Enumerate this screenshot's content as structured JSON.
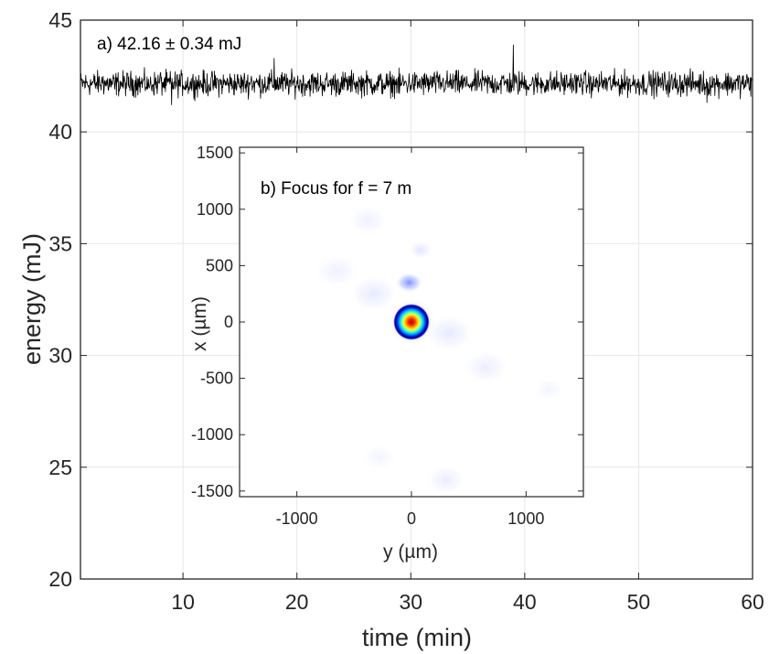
{
  "chart_data": [
    {
      "id": "a",
      "type": "line",
      "annotation": "a) 42.16 ± 0.34 mJ",
      "xlabel": "time (min)",
      "ylabel": "energy (mJ)",
      "xlim": [
        1,
        60
      ],
      "ylim": [
        20,
        45
      ],
      "xticks": [
        10,
        20,
        30,
        40,
        50,
        60
      ],
      "yticks": [
        20,
        25,
        30,
        35,
        40,
        45
      ],
      "grid": true,
      "line_color": "#000000",
      "series": [
        {
          "x": [
            1,
            2,
            3,
            4,
            5,
            6,
            7,
            8,
            9,
            10,
            11,
            12,
            13,
            14,
            15,
            16,
            17,
            18,
            19,
            20,
            21,
            22,
            23,
            24,
            25,
            26,
            27,
            28,
            29,
            30,
            31,
            32,
            33,
            34,
            35,
            36,
            37,
            38,
            39,
            40,
            41,
            42,
            43,
            44,
            45,
            46,
            47,
            48,
            49,
            50,
            51,
            52,
            53,
            54,
            55,
            56,
            57,
            58,
            59,
            60
          ],
          "y": [
            42.3,
            42.1,
            42.5,
            41.9,
            42.2,
            42.4,
            42.0,
            42.6,
            41.2,
            42.1,
            42.3,
            41.8,
            42.4,
            42.2,
            42.0,
            42.5,
            42.1,
            43.3,
            41.9,
            42.3,
            42.2,
            42.0,
            42.4,
            41.9,
            42.1,
            42.3,
            42.2,
            42.0,
            41.7,
            42.1,
            42.4,
            42.2,
            41.9,
            42.3,
            42.1,
            42.0,
            42.2,
            42.5,
            43.9,
            42.1,
            42.0,
            42.3,
            42.2,
            41.9,
            42.4,
            42.1,
            42.2,
            42.0,
            42.5,
            42.3,
            42.1,
            42.2,
            41.9,
            42.4,
            42.3,
            41.3,
            42.2,
            42.5,
            42.1,
            42.3
          ]
        }
      ]
    },
    {
      "id": "b",
      "type": "heatmap",
      "annotation": "b) Focus for f = 7 m",
      "xlabel": "y (µm)",
      "ylabel": "x (µm)",
      "xlim": [
        -1500,
        1500
      ],
      "ylim": [
        -1550,
        1550
      ],
      "xticks": [
        -1000,
        0,
        1000
      ],
      "yticks": [
        -1500,
        -1000,
        -500,
        0,
        500,
        1000,
        1500
      ],
      "colormap": "white-blue-cyan-yellow-red",
      "peak_center": [
        0,
        0
      ],
      "spots": [
        {
          "y": 0,
          "x": 0,
          "radius": 150,
          "intensity": 1.0
        },
        {
          "y": -20,
          "x": 350,
          "radius": 120,
          "intensity": 0.3
        },
        {
          "y": 80,
          "x": 640,
          "radius": 110,
          "intensity": 0.07
        },
        {
          "y": -330,
          "x": 250,
          "radius": 220,
          "intensity": 0.06
        },
        {
          "y": 330,
          "x": -100,
          "radius": 220,
          "intensity": 0.06
        },
        {
          "y": -380,
          "x": 900,
          "radius": 180,
          "intensity": 0.04
        },
        {
          "y": 650,
          "x": -400,
          "radius": 200,
          "intensity": 0.05
        },
        {
          "y": -650,
          "x": 450,
          "radius": 200,
          "intensity": 0.04
        },
        {
          "y": 300,
          "x": -1400,
          "radius": 180,
          "intensity": 0.05
        },
        {
          "y": -280,
          "x": -1200,
          "radius": 160,
          "intensity": 0.03
        },
        {
          "y": 1200,
          "x": -600,
          "radius": 140,
          "intensity": 0.03
        }
      ]
    }
  ]
}
